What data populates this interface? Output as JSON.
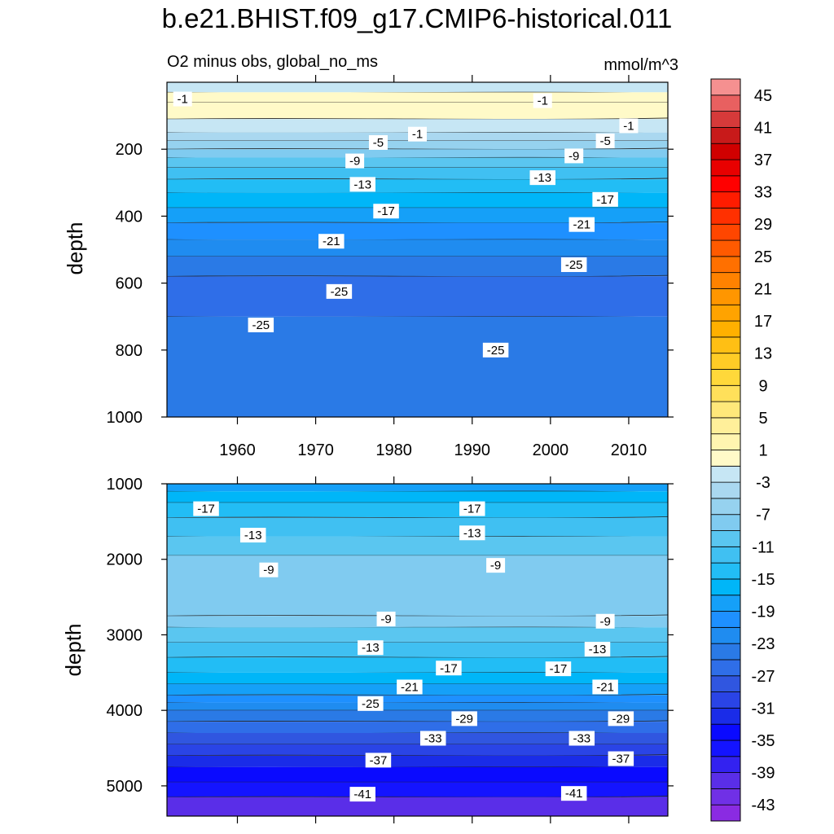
{
  "title": "b.e21.BHIST.f09_g17.CMIP6-historical.011",
  "chart_data": {
    "type": "heatmap",
    "subtitle_left": "O2 minus obs, global_no_ms",
    "subtitle_right": "mmol/m^3",
    "x_ticks": [
      "1960",
      "1970",
      "1980",
      "1990",
      "2000",
      "2010"
    ],
    "x_tick_values": [
      1960,
      1970,
      1980,
      1990,
      2000,
      2010
    ],
    "xlim": [
      1951,
      2015
    ],
    "colorbar": {
      "levels": [
        -45,
        -43,
        -41,
        -39,
        -37,
        -35,
        -33,
        -31,
        -29,
        -27,
        -25,
        -23,
        -21,
        -19,
        -17,
        -15,
        -13,
        -11,
        -9,
        -7,
        -5,
        -3,
        -1,
        1,
        3,
        5,
        7,
        9,
        11,
        13,
        15,
        17,
        19,
        21,
        23,
        25,
        27,
        29,
        31,
        33,
        35,
        37,
        39,
        41,
        43,
        45,
        47
      ],
      "colors": [
        "#8a2be2",
        "#7030e6",
        "#5a2ee8",
        "#3322f0",
        "#1414ff",
        "#0a0aff",
        "#1a2ce8",
        "#2a44e6",
        "#3056e0",
        "#2f6ee8",
        "#2a7ae6",
        "#1f8cf0",
        "#1e90ff",
        "#15a0f8",
        "#00b6f8",
        "#22bdf5",
        "#40c0f2",
        "#5ac6f0",
        "#80cbf0",
        "#96d2ef",
        "#aad8f0",
        "#c6e6f4",
        "#fffac8",
        "#fff5b0",
        "#ffef9a",
        "#ffe87a",
        "#ffe05a",
        "#ffd83a",
        "#ffcc26",
        "#ffbf14",
        "#ffb000",
        "#ffa300",
        "#ff9600",
        "#ff8200",
        "#ff7000",
        "#ff5a00",
        "#ff4600",
        "#ff3000",
        "#ff1c00",
        "#ff0000",
        "#e80000",
        "#d00000",
        "#c81a1a",
        "#d63a3a",
        "#e86060",
        "#f59090"
      ],
      "tick_labels": [
        "-43",
        "-39",
        "-35",
        "-31",
        "-27",
        "-23",
        "-19",
        "-15",
        "-11",
        "-7",
        "-3",
        "1",
        "5",
        "9",
        "13",
        "17",
        "21",
        "25",
        "29",
        "33",
        "37",
        "41",
        "45"
      ]
    },
    "panels": [
      {
        "name": "upper",
        "ylabel": "depth",
        "ylim": [
          0,
          1000
        ],
        "y_ticks": [
          "200",
          "400",
          "600",
          "800",
          "1000"
        ],
        "y_tick_values": [
          200,
          400,
          600,
          800,
          1000
        ],
        "bands": [
          {
            "depth": 30,
            "value": -2
          },
          {
            "depth": 60,
            "value": 0
          },
          {
            "depth": 110,
            "value": 0
          },
          {
            "depth": 150,
            "value": -2
          },
          {
            "depth": 175,
            "value": -4
          },
          {
            "depth": 200,
            "value": -6
          },
          {
            "depth": 225,
            "value": -8
          },
          {
            "depth": 255,
            "value": -10
          },
          {
            "depth": 290,
            "value": -12
          },
          {
            "depth": 330,
            "value": -14
          },
          {
            "depth": 375,
            "value": -16
          },
          {
            "depth": 420,
            "value": -18
          },
          {
            "depth": 470,
            "value": -20
          },
          {
            "depth": 520,
            "value": -22
          },
          {
            "depth": 580,
            "value": -24
          },
          {
            "depth": 700,
            "value": -26
          },
          {
            "depth": 1000,
            "value": -24
          }
        ],
        "contour_labels": [
          {
            "text": "-1",
            "year": 1953,
            "depth": 50
          },
          {
            "text": "-1",
            "year": 1999,
            "depth": 55
          },
          {
            "text": "-1",
            "year": 1983,
            "depth": 155
          },
          {
            "text": "-1",
            "year": 2010,
            "depth": 130
          },
          {
            "text": "-5",
            "year": 1978,
            "depth": 180
          },
          {
            "text": "-5",
            "year": 2007,
            "depth": 175
          },
          {
            "text": "-9",
            "year": 1975,
            "depth": 235
          },
          {
            "text": "-9",
            "year": 2003,
            "depth": 220
          },
          {
            "text": "-13",
            "year": 1976,
            "depth": 305
          },
          {
            "text": "-13",
            "year": 1999,
            "depth": 285
          },
          {
            "text": "-17",
            "year": 1979,
            "depth": 385
          },
          {
            "text": "-17",
            "year": 2007,
            "depth": 350
          },
          {
            "text": "-21",
            "year": 1972,
            "depth": 475
          },
          {
            "text": "-21",
            "year": 2004,
            "depth": 425
          },
          {
            "text": "-25",
            "year": 2003,
            "depth": 545
          },
          {
            "text": "-25",
            "year": 1973,
            "depth": 625
          },
          {
            "text": "-25",
            "year": 1963,
            "depth": 725
          },
          {
            "text": "-25",
            "year": 1993,
            "depth": 800
          }
        ]
      },
      {
        "name": "lower",
        "ylabel": "depth",
        "ylim": [
          1000,
          5400
        ],
        "y_ticks": [
          "1000",
          "2000",
          "3000",
          "4000",
          "5000"
        ],
        "y_tick_values": [
          1000,
          2000,
          3000,
          4000,
          5000
        ],
        "bands": [
          {
            "depth": 1100,
            "value": -19
          },
          {
            "depth": 1250,
            "value": -17
          },
          {
            "depth": 1450,
            "value": -15
          },
          {
            "depth": 1700,
            "value": -13
          },
          {
            "depth": 1950,
            "value": -11
          },
          {
            "depth": 2750,
            "value": -9
          },
          {
            "depth": 2900,
            "value": -9
          },
          {
            "depth": 3100,
            "value": -11
          },
          {
            "depth": 3300,
            "value": -13
          },
          {
            "depth": 3500,
            "value": -15
          },
          {
            "depth": 3650,
            "value": -17
          },
          {
            "depth": 3800,
            "value": -19
          },
          {
            "depth": 3900,
            "value": -21
          },
          {
            "depth": 4000,
            "value": -23
          },
          {
            "depth": 4150,
            "value": -25
          },
          {
            "depth": 4300,
            "value": -27
          },
          {
            "depth": 4450,
            "value": -29
          },
          {
            "depth": 4600,
            "value": -31
          },
          {
            "depth": 4750,
            "value": -33
          },
          {
            "depth": 4950,
            "value": -35
          },
          {
            "depth": 5150,
            "value": -37
          },
          {
            "depth": 5400,
            "value": -41
          }
        ],
        "contour_labels": [
          {
            "text": "-17",
            "year": 1956,
            "depth": 1330
          },
          {
            "text": "-17",
            "year": 1990,
            "depth": 1330
          },
          {
            "text": "-13",
            "year": 1962,
            "depth": 1680
          },
          {
            "text": "-13",
            "year": 1990,
            "depth": 1650
          },
          {
            "text": "-9",
            "year": 1964,
            "depth": 2140
          },
          {
            "text": "-9",
            "year": 1993,
            "depth": 2080
          },
          {
            "text": "-9",
            "year": 1979,
            "depth": 2790
          },
          {
            "text": "-9",
            "year": 2007,
            "depth": 2820
          },
          {
            "text": "-13",
            "year": 1977,
            "depth": 3170
          },
          {
            "text": "-13",
            "year": 2006,
            "depth": 3190
          },
          {
            "text": "-17",
            "year": 1987,
            "depth": 3440
          },
          {
            "text": "-17",
            "year": 2001,
            "depth": 3450
          },
          {
            "text": "-21",
            "year": 1982,
            "depth": 3690
          },
          {
            "text": "-21",
            "year": 2007,
            "depth": 3690
          },
          {
            "text": "-25",
            "year": 1977,
            "depth": 3910
          },
          {
            "text": "-29",
            "year": 1989,
            "depth": 4110
          },
          {
            "text": "-29",
            "year": 2009,
            "depth": 4110
          },
          {
            "text": "-33",
            "year": 1985,
            "depth": 4370
          },
          {
            "text": "-33",
            "year": 2004,
            "depth": 4370
          },
          {
            "text": "-37",
            "year": 1978,
            "depth": 4660
          },
          {
            "text": "-37",
            "year": 2009,
            "depth": 4640
          },
          {
            "text": "-41",
            "year": 1976,
            "depth": 5110
          },
          {
            "text": "-41",
            "year": 2003,
            "depth": 5100
          }
        ]
      }
    ]
  }
}
